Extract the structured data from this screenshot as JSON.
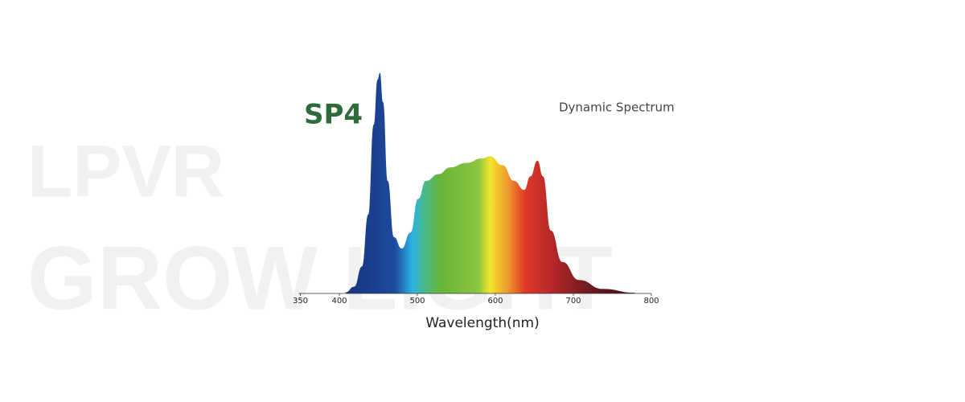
{
  "chart_data": {
    "type": "area",
    "title": "SP4",
    "subtitle": "Dynamic Spectrum",
    "xlabel": "Wavelength(nm)",
    "watermark": [
      "LPVR",
      "GROW LIGHT"
    ],
    "x": [
      408,
      419,
      429,
      437,
      444,
      449,
      452,
      456,
      462,
      470,
      480,
      491,
      501,
      511,
      527,
      542,
      563,
      583,
      593,
      609,
      624,
      637,
      645,
      654,
      661,
      671,
      686,
      707,
      738,
      779
    ],
    "values": [
      0.005,
      0.03,
      0.12,
      0.35,
      0.75,
      0.95,
      0.98,
      0.85,
      0.5,
      0.25,
      0.2,
      0.27,
      0.42,
      0.5,
      0.53,
      0.56,
      0.58,
      0.6,
      0.61,
      0.57,
      0.5,
      0.46,
      0.52,
      0.59,
      0.52,
      0.28,
      0.14,
      0.06,
      0.02,
      0.003
    ],
    "xlim": [
      350,
      800
    ],
    "ylim": [
      0,
      1
    ],
    "xticks": [
      350,
      400,
      500,
      600,
      700,
      800
    ]
  }
}
